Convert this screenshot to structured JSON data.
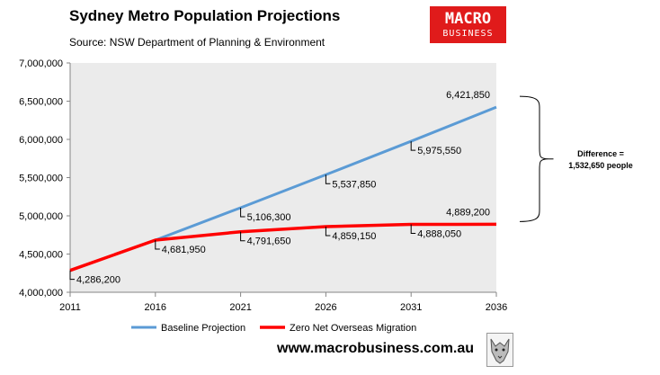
{
  "header": {
    "title": "Sydney Metro Population Projections",
    "source": "Source: NSW Department of Planning & Environment"
  },
  "logo": {
    "line1": "MACRO",
    "line2": "BUSINESS"
  },
  "footer": {
    "website": "www.macrobusiness.com.au",
    "mascot": "wolf-icon"
  },
  "colors": {
    "baseline": "#5b9bd5",
    "zero_nom": "#ff0000",
    "plot_bg": "#ebebeb",
    "brand": "#e01b1b"
  },
  "chart_data": {
    "type": "line",
    "title": "Sydney Metro Population Projections",
    "x": [
      "2011",
      "2016",
      "2021",
      "2026",
      "2031",
      "2036"
    ],
    "ylim": [
      4000000,
      7000000
    ],
    "yticks": [
      "4,000,000",
      "4,500,000",
      "5,000,000",
      "5,500,000",
      "6,000,000",
      "6,500,000",
      "7,000,000"
    ],
    "grid": false,
    "legend_position": "bottom",
    "series": [
      {
        "name": "Baseline Projection",
        "color": "#5b9bd5",
        "values": [
          null,
          4681950,
          5106300,
          5537850,
          5975550,
          6421850
        ],
        "labels": [
          "",
          "",
          "5,106,300",
          "5,537,850",
          "5,975,550",
          "6,421,850"
        ]
      },
      {
        "name": "Zero Net Overseas Migration",
        "color": "#ff0000",
        "values": [
          4286200,
          4681950,
          4791650,
          4859150,
          4888050,
          4889200
        ],
        "labels": [
          "4,286,200",
          "4,681,950",
          "4,791,650",
          "4,859,150",
          "4,888,050",
          "4,889,200"
        ]
      }
    ],
    "annotation": {
      "line1": "Difference =",
      "line2": "1,532,650 people"
    }
  }
}
